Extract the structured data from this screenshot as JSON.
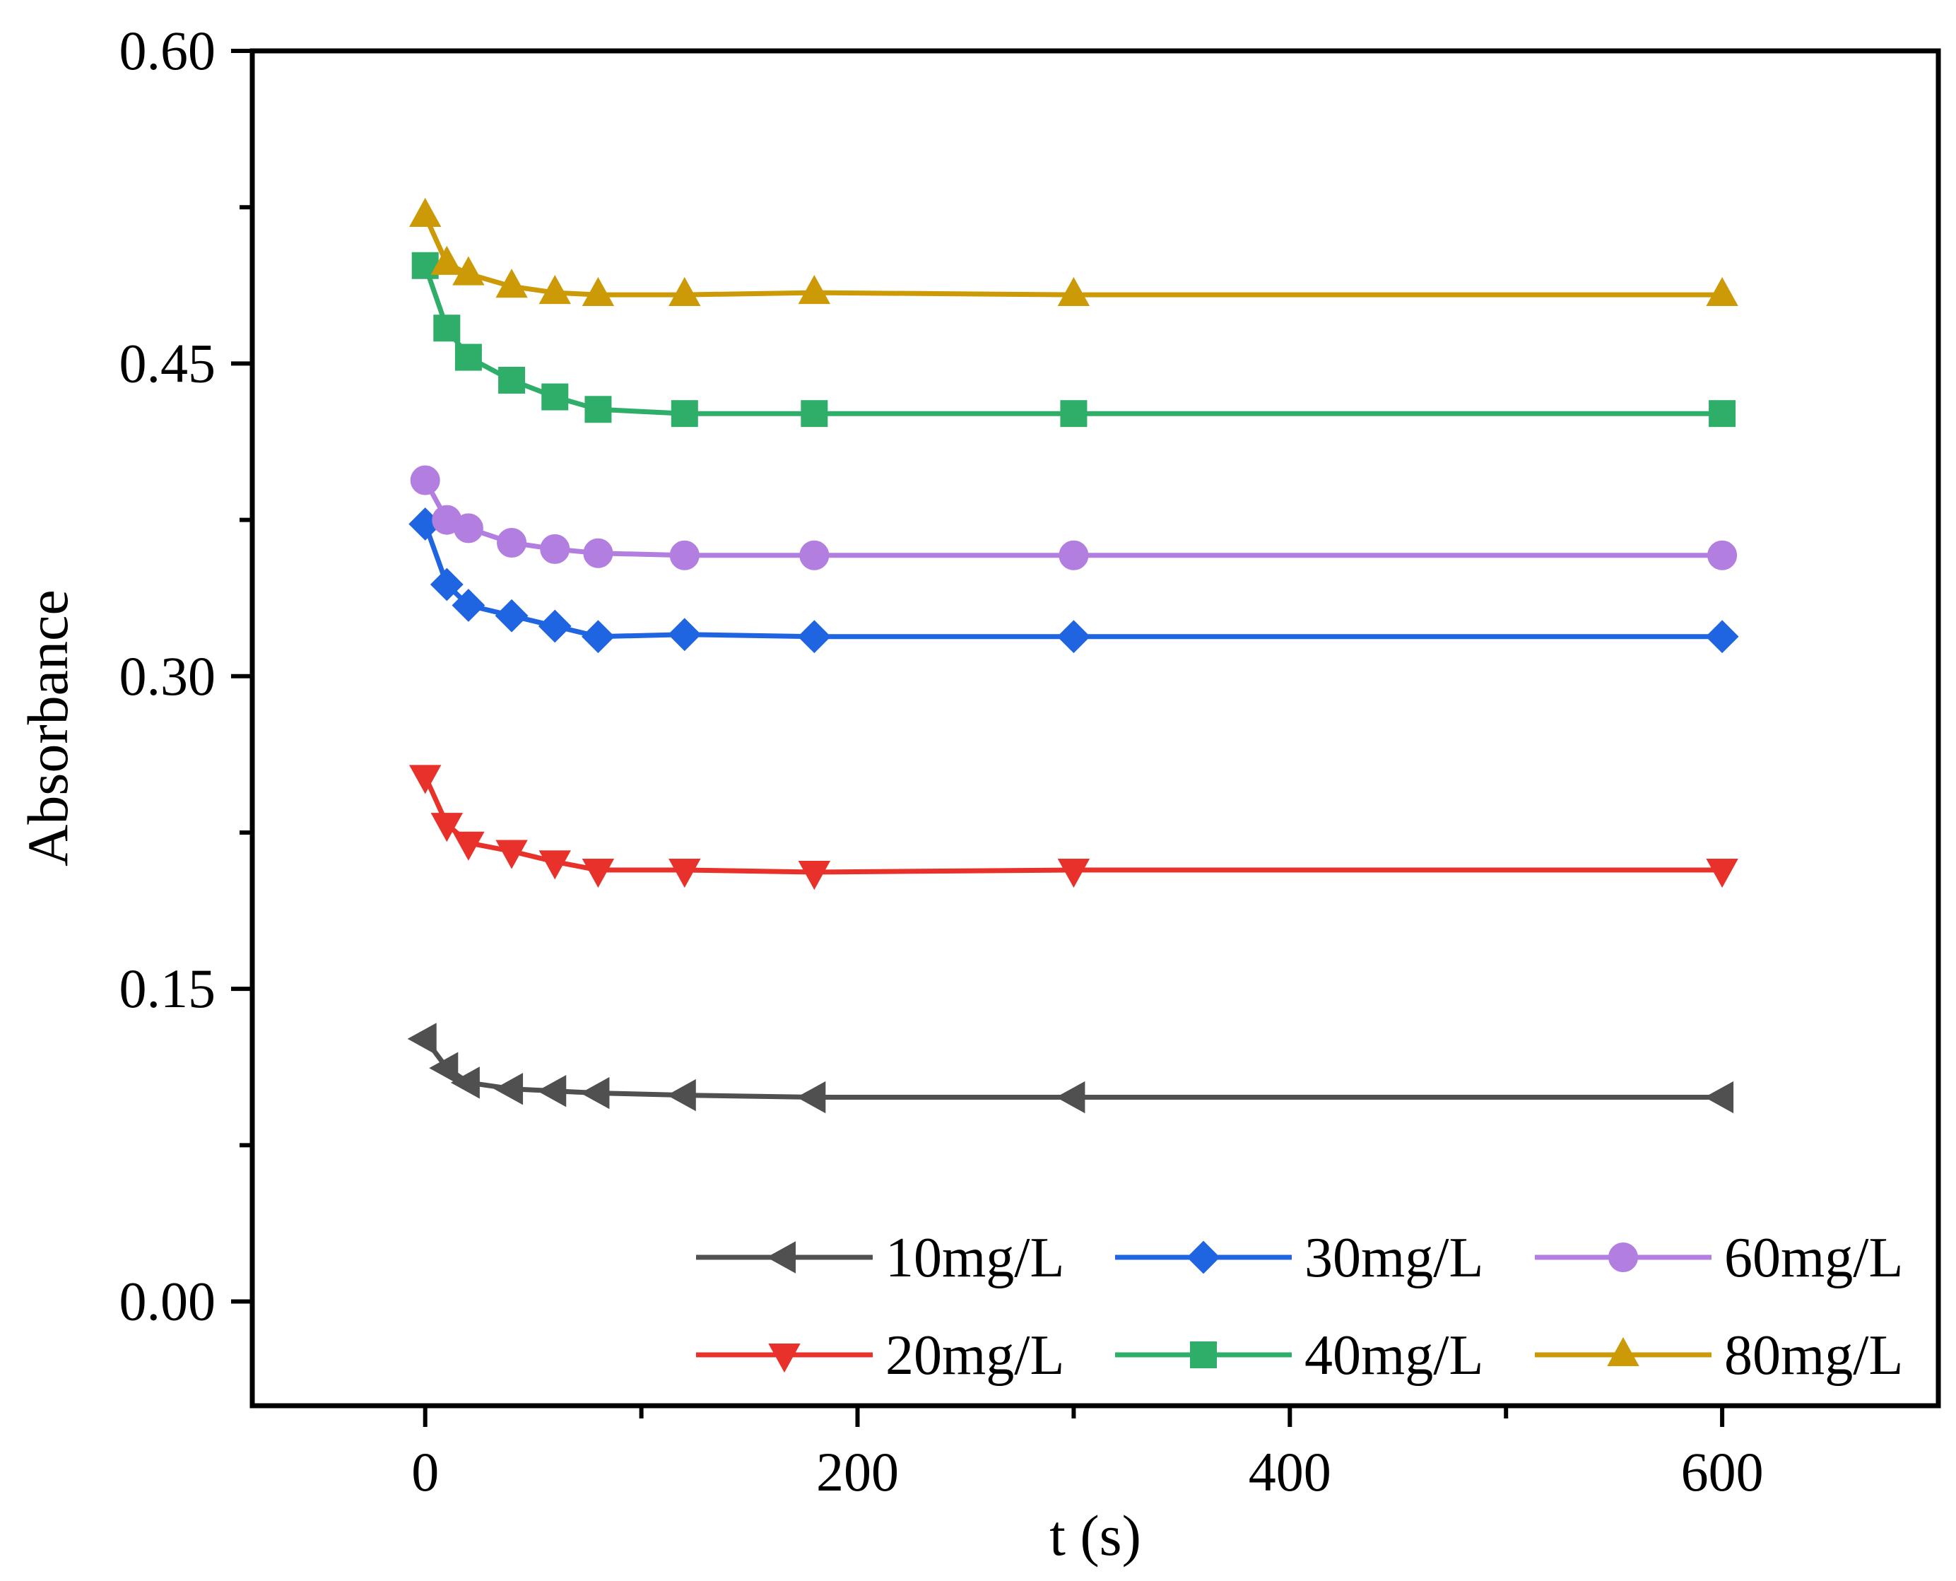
{
  "chart_data": {
    "type": "line",
    "title": "",
    "xlabel": "t (s)",
    "ylabel": "Absorbance",
    "xlim": [
      -80,
      700
    ],
    "ylim": [
      -0.05,
      0.6
    ],
    "xticks": [
      0,
      200,
      400,
      600
    ],
    "xtick_labels": [
      "0",
      "200",
      "400",
      "600"
    ],
    "yticks": [
      0.0,
      0.15,
      0.3,
      0.45,
      0.6
    ],
    "ytick_labels": [
      "0.00",
      "0.15",
      "0.30",
      "0.45",
      "0.60"
    ],
    "x": [
      0,
      10,
      20,
      40,
      60,
      80,
      120,
      180,
      300,
      600
    ],
    "legend_position": "bottom-right",
    "series": [
      {
        "name": "10mg/L",
        "color": "#505050",
        "marker": "triangle-left",
        "values": [
          0.126,
          0.112,
          0.105,
          0.102,
          0.101,
          0.1,
          0.099,
          0.098,
          0.098,
          0.098
        ]
      },
      {
        "name": "20mg/L",
        "color": "#e8312a",
        "marker": "triangle-down",
        "values": [
          0.252,
          0.229,
          0.22,
          0.216,
          0.211,
          0.207,
          0.207,
          0.206,
          0.207,
          0.207
        ]
      },
      {
        "name": "30mg/L",
        "color": "#1f64e0",
        "marker": "diamond",
        "values": [
          0.373,
          0.344,
          0.334,
          0.329,
          0.324,
          0.319,
          0.32,
          0.319,
          0.319,
          0.319
        ]
      },
      {
        "name": "40mg/L",
        "color": "#2fae69",
        "marker": "square",
        "values": [
          0.497,
          0.467,
          0.453,
          0.442,
          0.434,
          0.428,
          0.426,
          0.426,
          0.426,
          0.426
        ]
      },
      {
        "name": "60mg/L",
        "color": "#b27ee0",
        "marker": "circle",
        "values": [
          0.394,
          0.375,
          0.371,
          0.364,
          0.361,
          0.359,
          0.358,
          0.358,
          0.358,
          0.358
        ]
      },
      {
        "name": "80mg/L",
        "color": "#cc9a06",
        "marker": "triangle-up",
        "values": [
          0.521,
          0.498,
          0.493,
          0.487,
          0.484,
          0.483,
          0.483,
          0.484,
          0.483,
          0.483
        ]
      }
    ],
    "legend_order": [
      "10mg/L",
      "30mg/L",
      "60mg/L",
      "20mg/L",
      "40mg/L",
      "80mg/L"
    ]
  }
}
